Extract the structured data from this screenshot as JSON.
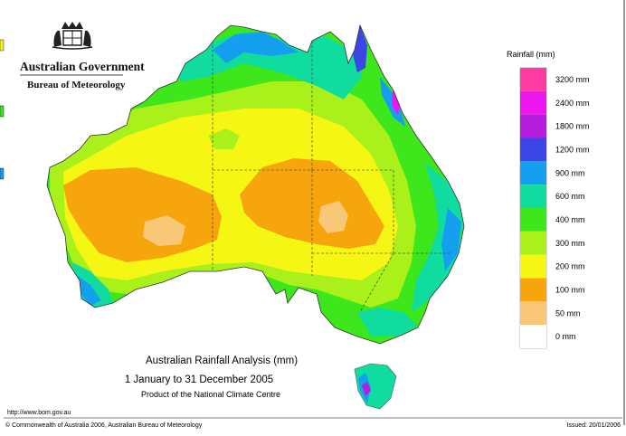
{
  "header": {
    "government": "Australian Government",
    "agency": "Bureau of Meteorology"
  },
  "map": {
    "title": "Australian Rainfall Analysis (mm)",
    "period": "1 January to 31 December 2005",
    "product": "Product of the National Climate Centre"
  },
  "legend": {
    "title": "Rainfall (mm)",
    "classes": [
      {
        "label": "3200 mm",
        "color": "#ff3aa0"
      },
      {
        "label": "2400 mm",
        "color": "#ee16ee"
      },
      {
        "label": "1800 mm",
        "color": "#b41edc"
      },
      {
        "label": "1200 mm",
        "color": "#3c46e6"
      },
      {
        "label": "900 mm",
        "color": "#14a0ee"
      },
      {
        "label": "600 mm",
        "color": "#10dca0"
      },
      {
        "label": "400 mm",
        "color": "#3ee61c"
      },
      {
        "label": "300 mm",
        "color": "#aaf01a"
      },
      {
        "label": "200 mm",
        "color": "#f6f614"
      },
      {
        "label": "100 mm",
        "color": "#f6a60c"
      },
      {
        "label": "50 mm",
        "color": "#f8c878"
      },
      {
        "label": "0 mm",
        "color": "#ffffff"
      }
    ]
  },
  "footer": {
    "url": "http://www.bom.gov.au",
    "copyright": "© Commonwealth of Australia 2006, Australian Bureau of Meteorology",
    "issued": "Issued: 20/01/2006"
  },
  "colors": {
    "lt50": "#f8c878",
    "r100": "#f6a60c",
    "r200": "#f6f614",
    "r300": "#aaf01a",
    "r400": "#3ee61c",
    "r600": "#10dca0",
    "r900": "#14a0ee",
    "r1200": "#3c46e6",
    "r1800": "#b41edc",
    "r2400": "#ee16ee",
    "r3200": "#ff3aa0"
  }
}
